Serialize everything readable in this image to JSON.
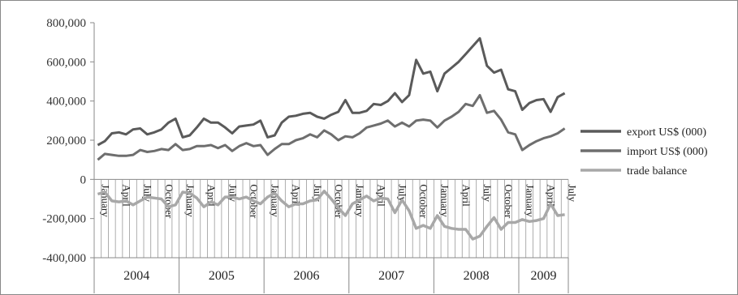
{
  "chart_data": {
    "type": "line",
    "title": "",
    "xlabel": "",
    "ylabel": "",
    "ylim": [
      -400000,
      800000
    ],
    "yticks": [
      "800,000",
      "600,000",
      "400,000",
      "200,000",
      "0",
      "-200,000",
      "-400,000"
    ],
    "ytick_values": [
      800000,
      600000,
      400000,
      200000,
      0,
      -200000,
      -400000
    ],
    "grid": false,
    "legend_position": "right",
    "month_labels": [
      "January",
      "April",
      "July",
      "October"
    ],
    "years": [
      {
        "label": "2004",
        "months": 12
      },
      {
        "label": "2005",
        "months": 12
      },
      {
        "label": "2006",
        "months": 12
      },
      {
        "label": "2007",
        "months": 12
      },
      {
        "label": "2008",
        "months": 12
      },
      {
        "label": "2009",
        "months": 7
      }
    ],
    "series": [
      {
        "name": "export US$ (000)",
        "color": "#5a5a5a",
        "values": [
          175000,
          195000,
          235000,
          240000,
          230000,
          255000,
          260000,
          230000,
          240000,
          255000,
          290000,
          310000,
          215000,
          225000,
          265000,
          310000,
          290000,
          290000,
          265000,
          235000,
          270000,
          275000,
          280000,
          300000,
          215000,
          225000,
          290000,
          320000,
          325000,
          335000,
          340000,
          320000,
          310000,
          330000,
          345000,
          405000,
          340000,
          340000,
          350000,
          385000,
          380000,
          400000,
          440000,
          395000,
          430000,
          610000,
          540000,
          550000,
          450000,
          540000,
          570000,
          600000,
          640000,
          680000,
          720000,
          580000,
          545000,
          560000,
          460000,
          450000,
          355000,
          390000,
          405000,
          410000,
          345000,
          420000,
          440000
        ]
      },
      {
        "name": "import US$ (000)",
        "color": "#6e6e6e",
        "values": [
          100000,
          130000,
          125000,
          120000,
          120000,
          125000,
          150000,
          140000,
          145000,
          155000,
          150000,
          180000,
          150000,
          155000,
          170000,
          170000,
          175000,
          160000,
          175000,
          145000,
          170000,
          185000,
          170000,
          175000,
          125000,
          155000,
          180000,
          180000,
          200000,
          210000,
          230000,
          215000,
          250000,
          230000,
          200000,
          220000,
          215000,
          235000,
          265000,
          275000,
          285000,
          300000,
          270000,
          290000,
          270000,
          300000,
          305000,
          300000,
          265000,
          300000,
          320000,
          345000,
          385000,
          375000,
          430000,
          340000,
          350000,
          305000,
          240000,
          230000,
          150000,
          175000,
          195000,
          210000,
          220000,
          235000,
          260000
        ]
      },
      {
        "name": "trade balance",
        "color": "#a8a8a8",
        "values": [
          -75000,
          -65000,
          -110000,
          -115000,
          -110000,
          -130000,
          -110000,
          -90000,
          -95000,
          -100000,
          -140000,
          -130000,
          -65000,
          -70000,
          -95000,
          -140000,
          -115000,
          -130000,
          -90000,
          -90000,
          -100000,
          -90000,
          -110000,
          -125000,
          -90000,
          -70000,
          -110000,
          -140000,
          -125000,
          -125000,
          -110000,
          -105000,
          -60000,
          -100000,
          -145000,
          -185000,
          -125000,
          -105000,
          -85000,
          -110000,
          -95000,
          -100000,
          -170000,
          -105000,
          -160000,
          -250000,
          -235000,
          -250000,
          -185000,
          -240000,
          -250000,
          -255000,
          -255000,
          -305000,
          -290000,
          -240000,
          -195000,
          -255000,
          -220000,
          -220000,
          -205000,
          -215000,
          -210000,
          -200000,
          -125000,
          -185000,
          -180000
        ]
      }
    ]
  }
}
